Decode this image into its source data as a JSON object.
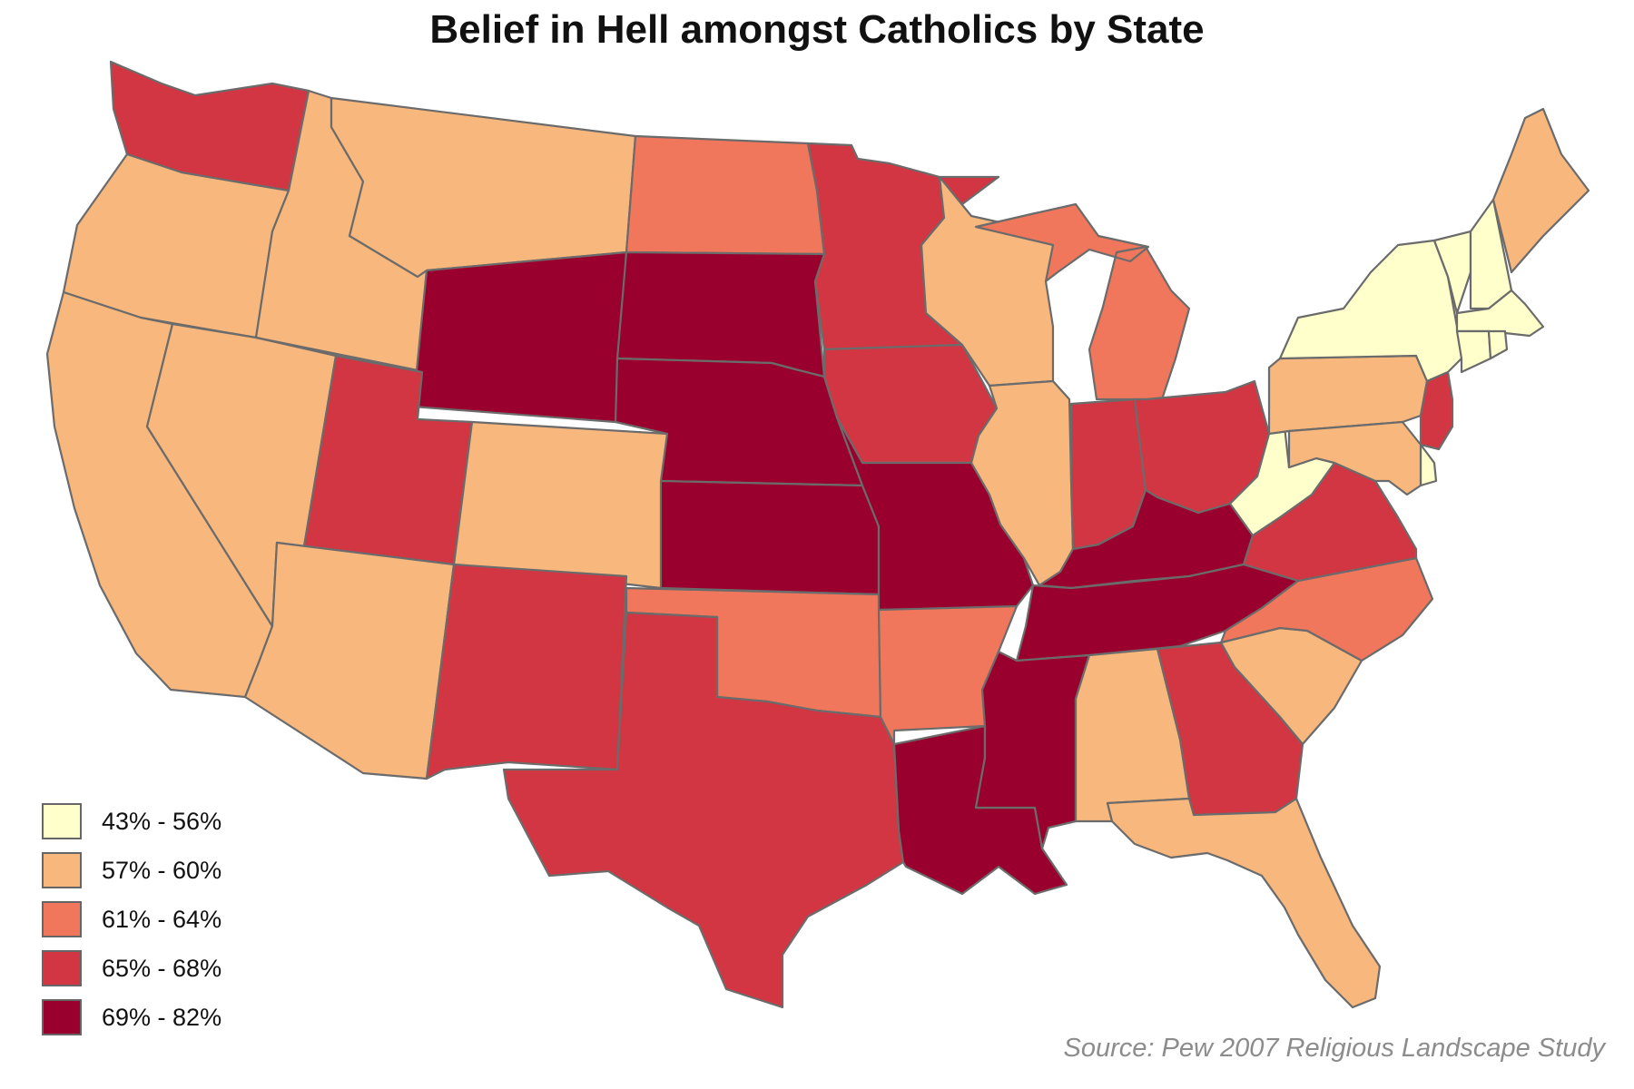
{
  "title": "Belief in Hell amongst Catholics by State",
  "source": "Source: Pew 2007 Religious Landscape Study",
  "legend": [
    {
      "label": "43% - 56%",
      "color": "#ffffcc"
    },
    {
      "label": "57% - 60%",
      "color": "#f7b77d"
    },
    {
      "label": "61% - 64%",
      "color": "#f0775b"
    },
    {
      "label": "65% - 68%",
      "color": "#d23642"
    },
    {
      "label": "69% - 82%",
      "color": "#99002d"
    }
  ],
  "states": [
    {
      "id": "WA",
      "class": 3
    },
    {
      "id": "OR",
      "class": 1
    },
    {
      "id": "CA",
      "class": 1
    },
    {
      "id": "ID",
      "class": 1
    },
    {
      "id": "NV",
      "class": 1
    },
    {
      "id": "MT",
      "class": 1
    },
    {
      "id": "WY",
      "class": 4
    },
    {
      "id": "UT",
      "class": 3
    },
    {
      "id": "AZ",
      "class": 1
    },
    {
      "id": "CO",
      "class": 1
    },
    {
      "id": "NM",
      "class": 3
    },
    {
      "id": "ND",
      "class": 2
    },
    {
      "id": "SD",
      "class": 4
    },
    {
      "id": "NE",
      "class": 4
    },
    {
      "id": "KS",
      "class": 4
    },
    {
      "id": "OK",
      "class": 2
    },
    {
      "id": "TX",
      "class": 3
    },
    {
      "id": "MN",
      "class": 3
    },
    {
      "id": "IA",
      "class": 3
    },
    {
      "id": "MO",
      "class": 4
    },
    {
      "id": "AR",
      "class": 2
    },
    {
      "id": "LA",
      "class": 4
    },
    {
      "id": "WI",
      "class": 1
    },
    {
      "id": "IL",
      "class": 1
    },
    {
      "id": "MI",
      "class": 2
    },
    {
      "id": "IN",
      "class": 3
    },
    {
      "id": "OH",
      "class": 3
    },
    {
      "id": "KY",
      "class": 4
    },
    {
      "id": "TN",
      "class": 4
    },
    {
      "id": "MS",
      "class": 4
    },
    {
      "id": "AL",
      "class": 1
    },
    {
      "id": "GA",
      "class": 3
    },
    {
      "id": "FL",
      "class": 1
    },
    {
      "id": "SC",
      "class": 1
    },
    {
      "id": "NC",
      "class": 2
    },
    {
      "id": "VA",
      "class": 3
    },
    {
      "id": "WV",
      "class": 0
    },
    {
      "id": "PA",
      "class": 1
    },
    {
      "id": "NY",
      "class": 0
    },
    {
      "id": "VT",
      "class": 0
    },
    {
      "id": "NH",
      "class": 0
    },
    {
      "id": "ME",
      "class": 1
    },
    {
      "id": "MA",
      "class": 0
    },
    {
      "id": "CT",
      "class": 0
    },
    {
      "id": "RI",
      "class": 0
    },
    {
      "id": "NJ",
      "class": 3
    },
    {
      "id": "DE",
      "class": 0
    },
    {
      "id": "MD",
      "class": 1
    }
  ]
}
